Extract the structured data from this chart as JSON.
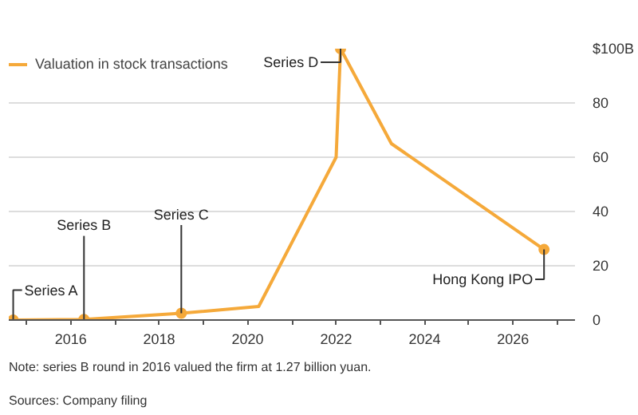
{
  "chart_data": {
    "type": "line",
    "x": [
      2014.7,
      2016.3,
      2018.5,
      2020.25,
      2022.0,
      2022.1,
      2023.25,
      2026.7
    ],
    "series": [
      {
        "name": "Valuation in stock transactions",
        "color": "#f5a93a",
        "values": [
          0,
          0.2,
          2.5,
          5,
          60,
          100,
          65,
          26
        ]
      }
    ],
    "xlim": [
      2014.6,
      2027.4
    ],
    "ylim": [
      0,
      100
    ],
    "xticks": [
      {
        "value": 2015,
        "label": null
      },
      2016,
      {
        "value": 2017,
        "label": null
      },
      2018,
      {
        "value": 2019,
        "label": null
      },
      2020,
      {
        "value": 2021,
        "label": null
      },
      2022,
      {
        "value": 2023,
        "label": null
      },
      2024,
      {
        "value": 2025,
        "label": null
      },
      2026,
      {
        "value": 2027,
        "label": null
      }
    ],
    "yticks": [
      0,
      20,
      40,
      60,
      80,
      {
        "value": 100,
        "label": "$100B"
      }
    ],
    "grid": "y",
    "legend": "top left",
    "annotations": [
      {
        "text": "Series A",
        "x": 2014.7,
        "y": 0
      },
      {
        "text": "Series B",
        "x": 2016.3,
        "y": 0.2
      },
      {
        "text": "Series C",
        "x": 2018.5,
        "y": 2.5
      },
      {
        "text": "Series D",
        "x": 2022.1,
        "y": 100
      },
      {
        "text": "Hong Kong IPO",
        "x": 2026.7,
        "y": 26
      },
      "Note: series B round in 2016 valued the firm at 1.27 billion yuan.",
      "Sources: Company filing"
    ]
  }
}
